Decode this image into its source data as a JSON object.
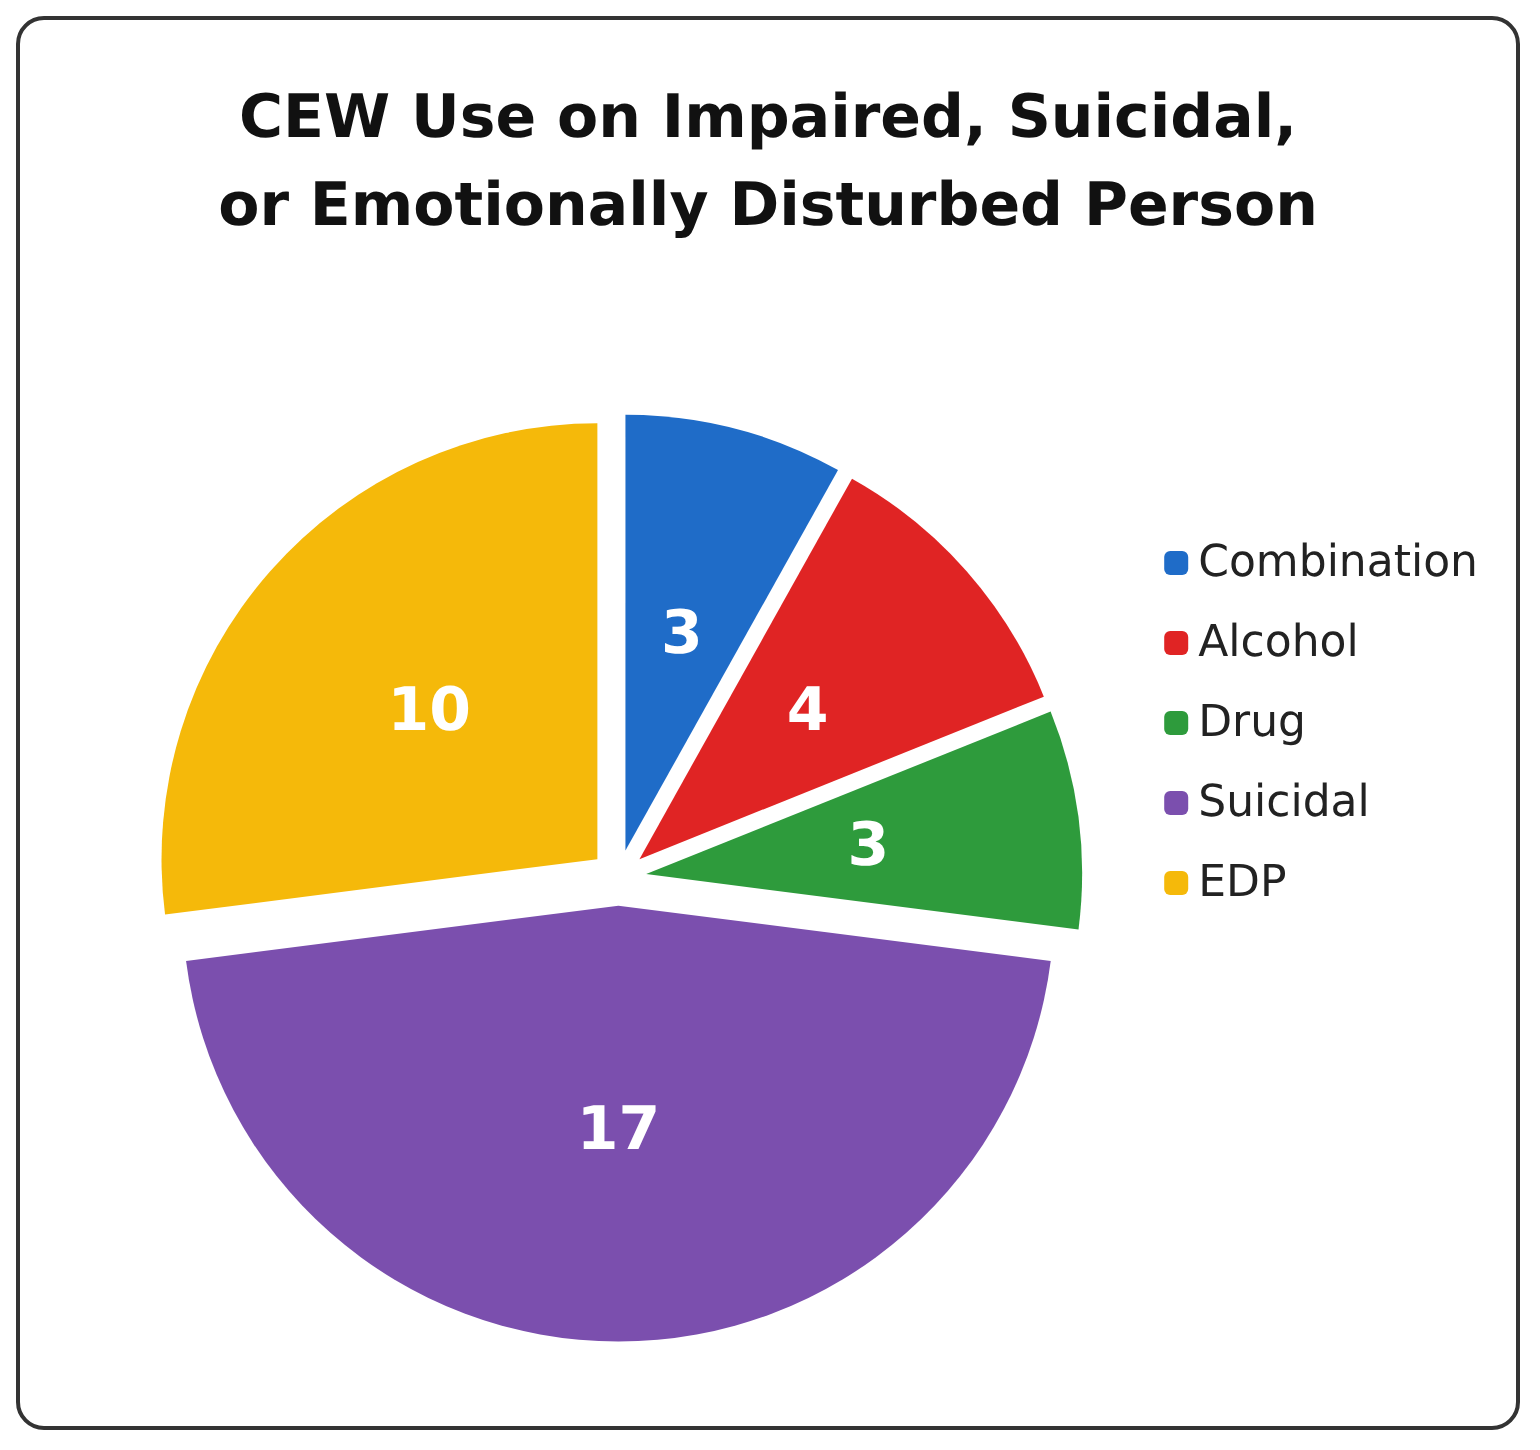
{
  "chart_data": {
    "type": "pie",
    "title": "CEW Use on Impaired, Suicidal,\nor Emotionally Disturbed Person",
    "categories": [
      "Combination",
      "Alcohol",
      "Drug",
      "Suicidal",
      "EDP"
    ],
    "values": [
      3,
      4,
      3,
      17,
      10
    ],
    "colors": [
      "#1f6cc8",
      "#e02424",
      "#2e9b3c",
      "#7b4fae",
      "#f5b90a"
    ],
    "data_labels": true,
    "legend": "right"
  }
}
